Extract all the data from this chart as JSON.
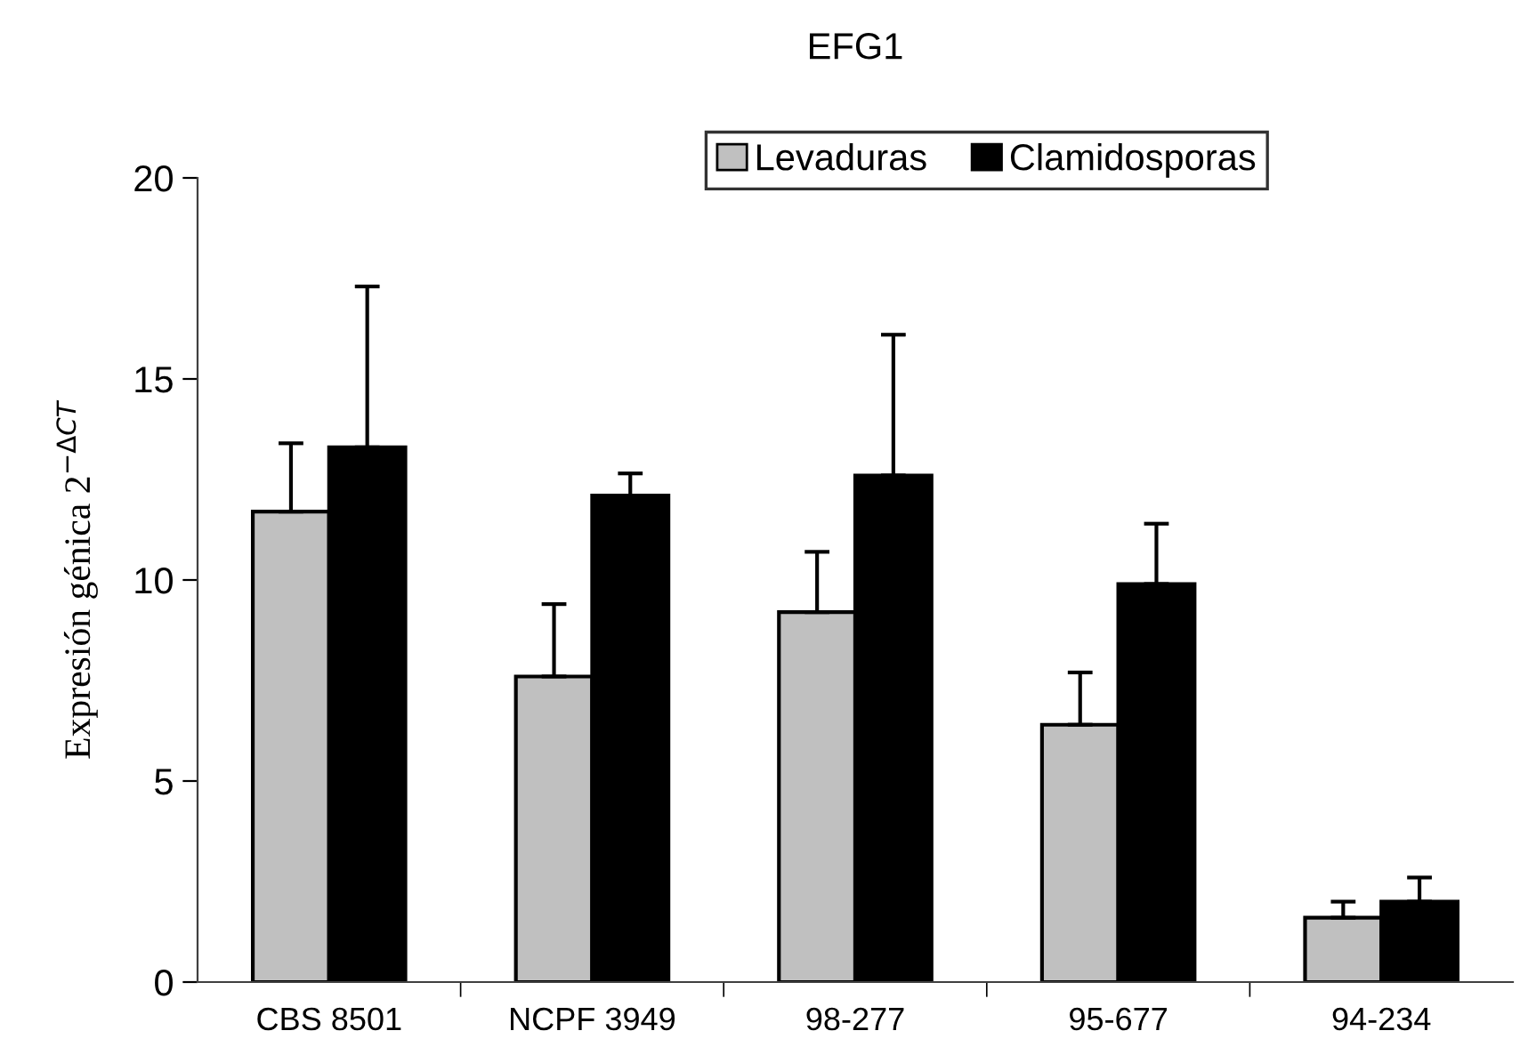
{
  "chart_data": {
    "type": "bar",
    "title": "EFG1",
    "ylabel": "Expresión génica 2$^{−ΔCT}$",
    "categories": [
      "CBS 8501",
      "NCPF 3949",
      "98-277",
      "95-677",
      "94-234"
    ],
    "series": [
      {
        "name": "Levaduras",
        "color": "#c0c0c0",
        "values": [
          11.7,
          7.6,
          9.2,
          6.4,
          1.6
        ],
        "errors": [
          1.7,
          1.8,
          1.5,
          1.3,
          0.4
        ]
      },
      {
        "name": "Clamidosporas",
        "color": "#000000",
        "values": [
          13.3,
          12.1,
          12.6,
          9.9,
          2.0
        ],
        "errors": [
          4.0,
          0.55,
          3.5,
          1.5,
          0.6
        ]
      }
    ],
    "ylim": [
      0,
      20
    ],
    "yticks": [
      0,
      5,
      10,
      15,
      20
    ],
    "grid": false,
    "legend": "top"
  }
}
